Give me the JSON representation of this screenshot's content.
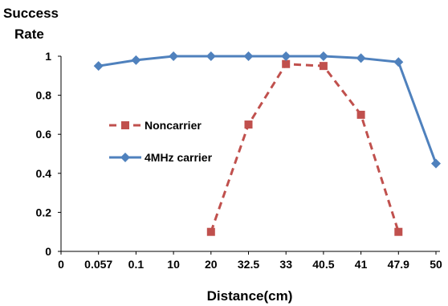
{
  "chart_data": {
    "type": "line",
    "ylabel_line1": "Success",
    "ylabel_line2": "Rate",
    "xlabel": "Distance(cm)",
    "categories": [
      "0",
      "0.057",
      "0.1",
      "10",
      "20",
      "32.5",
      "33",
      "40.5",
      "41",
      "47.9",
      "50"
    ],
    "ylim": [
      0,
      1
    ],
    "yticks": [
      "0",
      "0.2",
      "0.4",
      "0.6",
      "0.8",
      "1"
    ],
    "grid": false,
    "legend_position": "middle-left",
    "series": [
      {
        "name": "Noncarrier",
        "color": "#c0504d",
        "dashed": true,
        "marker": "square",
        "values": [
          null,
          null,
          null,
          null,
          0.1,
          0.65,
          0.96,
          0.95,
          0.7,
          0.1,
          null
        ]
      },
      {
        "name": "4MHz carrier",
        "color": "#4f81bd",
        "dashed": false,
        "marker": "diamond",
        "values": [
          null,
          0.95,
          0.98,
          1.0,
          1.0,
          1.0,
          1.0,
          1.0,
          0.99,
          0.97,
          0.45
        ]
      }
    ]
  }
}
